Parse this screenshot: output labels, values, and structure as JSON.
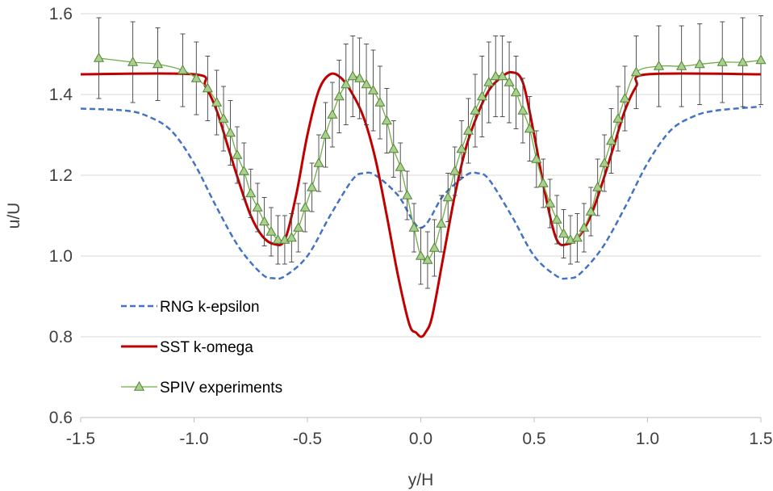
{
  "chart_data": {
    "type": "line",
    "title": "",
    "xlabel": "y/H",
    "ylabel": "u/U",
    "xlim": [
      -1.5,
      1.5
    ],
    "ylim": [
      0.6,
      1.6
    ],
    "xticks": [
      "-1.5",
      "-1.0",
      "-0.5",
      "0.0",
      "0.5",
      "1.0",
      "1.5"
    ],
    "yticks": [
      "0.6",
      "0.8",
      "1.0",
      "1.2",
      "1.4",
      "1.6"
    ],
    "grid": "horizontal",
    "legend": "lower-left",
    "colors": {
      "rng": "#4472C4",
      "sst": "#C00000",
      "spiv_line": "#70AD47",
      "spiv_fill": "#A9D18E",
      "spiv_edge": "#548235",
      "grid": "#D9D9D9",
      "errorbar": "#404040"
    },
    "series": [
      {
        "name": "RNG k-epsilon",
        "style": "dashed",
        "x": [
          -1.5,
          -1.3,
          -1.2,
          -1.1,
          -1.0,
          -0.9,
          -0.8,
          -0.7,
          -0.65,
          -0.6,
          -0.5,
          -0.4,
          -0.3,
          -0.25,
          -0.2,
          -0.1,
          0.0,
          0.1,
          0.2,
          0.25,
          0.3,
          0.4,
          0.5,
          0.6,
          0.65,
          0.7,
          0.8,
          0.9,
          1.0,
          1.1,
          1.2,
          1.3,
          1.5
        ],
        "y": [
          1.365,
          1.36,
          1.345,
          1.31,
          1.23,
          1.12,
          1.02,
          0.955,
          0.945,
          0.95,
          1.0,
          1.1,
          1.19,
          1.205,
          1.2,
          1.15,
          1.07,
          1.15,
          1.2,
          1.205,
          1.19,
          1.1,
          1.0,
          0.95,
          0.945,
          0.955,
          1.02,
          1.12,
          1.23,
          1.31,
          1.345,
          1.36,
          1.37
        ]
      },
      {
        "name": "SST k-omega",
        "style": "solid",
        "x": [
          -1.5,
          -1.0,
          -0.95,
          -0.9,
          -0.85,
          -0.8,
          -0.75,
          -0.7,
          -0.65,
          -0.6,
          -0.55,
          -0.5,
          -0.45,
          -0.4,
          -0.35,
          -0.3,
          -0.25,
          -0.2,
          -0.15,
          -0.1,
          -0.05,
          -0.02,
          0.0,
          0.02,
          0.05,
          0.1,
          0.15,
          0.2,
          0.25,
          0.3,
          0.35,
          0.4,
          0.45,
          0.5,
          0.55,
          0.6,
          0.65,
          0.7,
          0.75,
          0.8,
          0.85,
          0.9,
          0.95,
          1.0,
          1.5
        ],
        "y": [
          1.45,
          1.45,
          1.42,
          1.36,
          1.27,
          1.18,
          1.1,
          1.05,
          1.03,
          1.04,
          1.15,
          1.3,
          1.41,
          1.45,
          1.44,
          1.4,
          1.34,
          1.24,
          1.1,
          0.95,
          0.83,
          0.81,
          0.8,
          0.81,
          0.85,
          1.0,
          1.15,
          1.27,
          1.35,
          1.41,
          1.44,
          1.455,
          1.43,
          1.3,
          1.15,
          1.04,
          1.03,
          1.05,
          1.1,
          1.18,
          1.27,
          1.36,
          1.42,
          1.45,
          1.45
        ]
      },
      {
        "name": "SPIV experiments",
        "style": "line-markers",
        "marker": "triangle",
        "x": [
          -1.42,
          -1.27,
          -1.16,
          -1.05,
          -0.99,
          -0.94,
          -0.9,
          -0.87,
          -0.84,
          -0.81,
          -0.78,
          -0.75,
          -0.72,
          -0.69,
          -0.66,
          -0.63,
          -0.6,
          -0.57,
          -0.54,
          -0.51,
          -0.48,
          -0.45,
          -0.42,
          -0.39,
          -0.36,
          -0.33,
          -0.3,
          -0.27,
          -0.24,
          -0.21,
          -0.18,
          -0.15,
          -0.12,
          -0.09,
          -0.06,
          -0.03,
          0.0,
          0.03,
          0.06,
          0.09,
          0.12,
          0.15,
          0.18,
          0.21,
          0.24,
          0.27,
          0.3,
          0.33,
          0.36,
          0.39,
          0.42,
          0.45,
          0.48,
          0.51,
          0.54,
          0.57,
          0.6,
          0.63,
          0.66,
          0.69,
          0.72,
          0.75,
          0.78,
          0.81,
          0.84,
          0.87,
          0.9,
          0.95,
          1.05,
          1.15,
          1.23,
          1.33,
          1.42,
          1.5
        ],
        "y": [
          1.49,
          1.48,
          1.475,
          1.46,
          1.44,
          1.415,
          1.38,
          1.34,
          1.305,
          1.25,
          1.21,
          1.155,
          1.12,
          1.085,
          1.06,
          1.04,
          1.04,
          1.045,
          1.07,
          1.12,
          1.17,
          1.23,
          1.3,
          1.35,
          1.395,
          1.425,
          1.445,
          1.44,
          1.425,
          1.41,
          1.38,
          1.335,
          1.265,
          1.22,
          1.15,
          1.07,
          1.0,
          0.99,
          1.02,
          1.08,
          1.145,
          1.21,
          1.265,
          1.31,
          1.36,
          1.395,
          1.43,
          1.445,
          1.445,
          1.43,
          1.405,
          1.36,
          1.315,
          1.24,
          1.18,
          1.13,
          1.09,
          1.055,
          1.04,
          1.045,
          1.07,
          1.11,
          1.17,
          1.23,
          1.285,
          1.34,
          1.39,
          1.455,
          1.47,
          1.47,
          1.475,
          1.48,
          1.48,
          1.485
        ],
        "err": [
          0.1,
          0.1,
          0.09,
          0.09,
          0.09,
          0.08,
          0.08,
          0.08,
          0.08,
          0.07,
          0.07,
          0.06,
          0.06,
          0.06,
          0.06,
          0.06,
          0.06,
          0.06,
          0.06,
          0.06,
          0.06,
          0.07,
          0.08,
          0.08,
          0.09,
          0.1,
          0.1,
          0.1,
          0.1,
          0.1,
          0.09,
          0.08,
          0.07,
          0.06,
          0.06,
          0.06,
          0.07,
          0.07,
          0.07,
          0.07,
          0.06,
          0.06,
          0.07,
          0.08,
          0.09,
          0.1,
          0.1,
          0.1,
          0.1,
          0.1,
          0.09,
          0.08,
          0.08,
          0.07,
          0.06,
          0.06,
          0.06,
          0.06,
          0.06,
          0.06,
          0.06,
          0.06,
          0.07,
          0.07,
          0.08,
          0.08,
          0.08,
          0.09,
          0.1,
          0.1,
          0.1,
          0.1,
          0.11,
          0.11
        ]
      }
    ]
  }
}
